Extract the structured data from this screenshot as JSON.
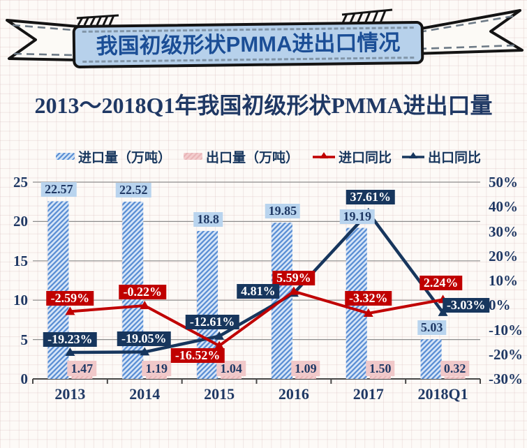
{
  "banner": {
    "title": "我国初级形状PMMA进出口情况"
  },
  "chart_title": "2013～2018Q1年我国初级形状PMMA进出口量",
  "legend": {
    "items": [
      {
        "label": "进口量（万吨）",
        "swatch": "blue-hatched-bar"
      },
      {
        "label": "出口量（万吨）",
        "swatch": "pink-bar"
      },
      {
        "label": "进口同比",
        "swatch": "red-line-triangle"
      },
      {
        "label": "出口同比",
        "swatch": "navy-line-triangle"
      }
    ]
  },
  "colors": {
    "navy": "#17365d",
    "red": "#c00000",
    "title_navy": "#1f3864",
    "banner_fill": "#b7d1eb",
    "banner_text": "#1b4e96",
    "import_bar_light": "#d7e6f8",
    "import_bar_stroke": "#5b8fd4",
    "export_bar_light": "#f3cdce",
    "export_bar_stroke": "#e9b6b8",
    "import_value_box": "#b9d4ee",
    "export_value_box": "#f0c8c9",
    "gridline": "#8c8c8c"
  },
  "chart_data": {
    "type": "bar+line combo",
    "categories": [
      "2013",
      "2014",
      "2015",
      "2016",
      "2017",
      "2018Q1"
    ],
    "series": [
      {
        "name": "进口量（万吨）",
        "type": "bar",
        "axis": "left",
        "values": [
          22.57,
          22.52,
          18.8,
          19.85,
          19.19,
          5.03
        ],
        "labels": [
          "22.57",
          "22.52",
          "18.8",
          "19.85",
          "19.19",
          "5.03"
        ]
      },
      {
        "name": "出口量（万吨）",
        "type": "bar",
        "axis": "left",
        "values": [
          1.47,
          1.19,
          1.04,
          1.09,
          1.5,
          0.32
        ],
        "labels": [
          "1.47",
          "1.19",
          "1.04",
          "1.09",
          "1.50",
          "0.32"
        ]
      },
      {
        "name": "进口同比",
        "type": "line",
        "axis": "right",
        "values": [
          -2.59,
          -0.22,
          -16.52,
          5.59,
          -3.32,
          2.24
        ],
        "labels": [
          "-2.59%",
          "-0.22%",
          "-16.52%",
          "5.59%",
          "-3.32%",
          "2.24%"
        ]
      },
      {
        "name": "出口同比",
        "type": "line",
        "axis": "right",
        "values": [
          -19.23,
          -19.05,
          -12.61,
          4.81,
          37.61,
          -3.03
        ],
        "labels": [
          "-19.23%",
          "-19.05%",
          "-12.61%",
          "4.81%",
          "37.61%",
          "-3.03%"
        ]
      }
    ],
    "left_axis": {
      "ticks": [
        "25",
        "20",
        "15",
        "10",
        "5",
        "0"
      ],
      "min": 0,
      "max": 25
    },
    "right_axis": {
      "ticks": [
        "50%",
        "40%",
        "30%",
        "20%",
        "10%",
        "0%",
        "-10%",
        "-20%",
        "-30%"
      ],
      "min": -30,
      "max": 50
    },
    "grid": "horizontal-only",
    "legend_position": "top"
  }
}
